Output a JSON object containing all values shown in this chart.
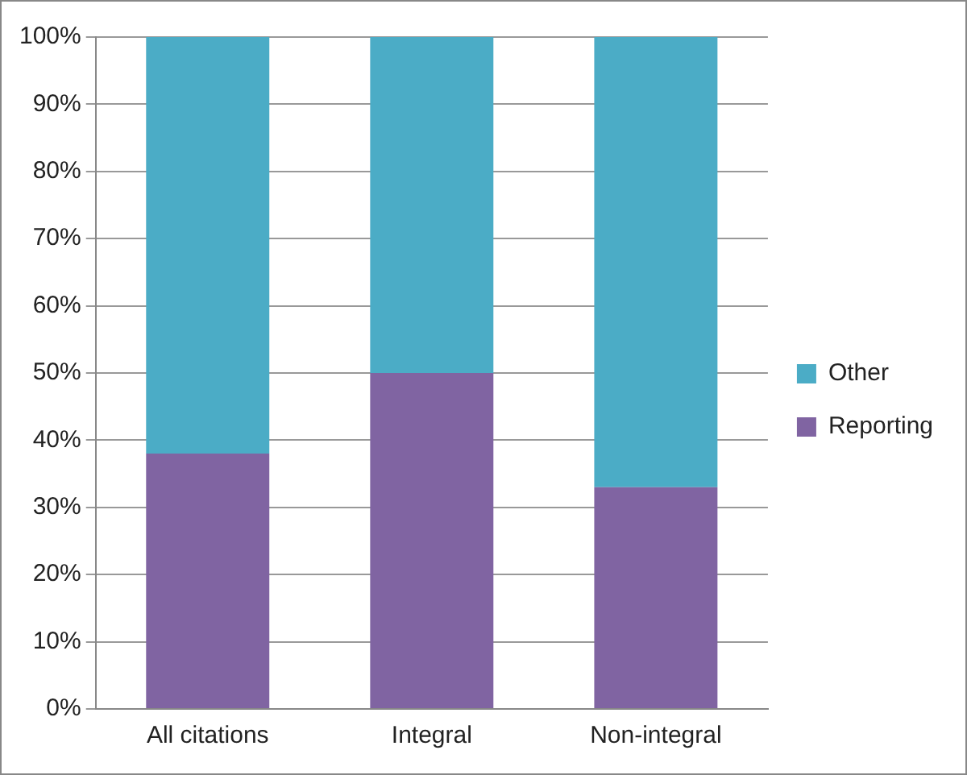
{
  "chart_data": {
    "type": "bar",
    "stacked": true,
    "categories": [
      "All citations",
      "Integral",
      "Non-integral"
    ],
    "series": [
      {
        "name": "Reporting",
        "color": "#8064a2",
        "values": [
          38,
          50,
          33
        ]
      },
      {
        "name": "Other",
        "color": "#4bacc6",
        "values": [
          62,
          50,
          67
        ]
      }
    ],
    "ylim": [
      0,
      100
    ],
    "yticks": [
      {
        "value": 0,
        "label": "0%"
      },
      {
        "value": 10,
        "label": "10%"
      },
      {
        "value": 20,
        "label": "20%"
      },
      {
        "value": 30,
        "label": "30%"
      },
      {
        "value": 40,
        "label": "40%"
      },
      {
        "value": 50,
        "label": "50%"
      },
      {
        "value": 60,
        "label": "60%"
      },
      {
        "value": 70,
        "label": "70%"
      },
      {
        "value": 80,
        "label": "80%"
      },
      {
        "value": 90,
        "label": "90%"
      },
      {
        "value": 100,
        "label": "100%"
      }
    ],
    "grid": "y",
    "legend": "right"
  }
}
